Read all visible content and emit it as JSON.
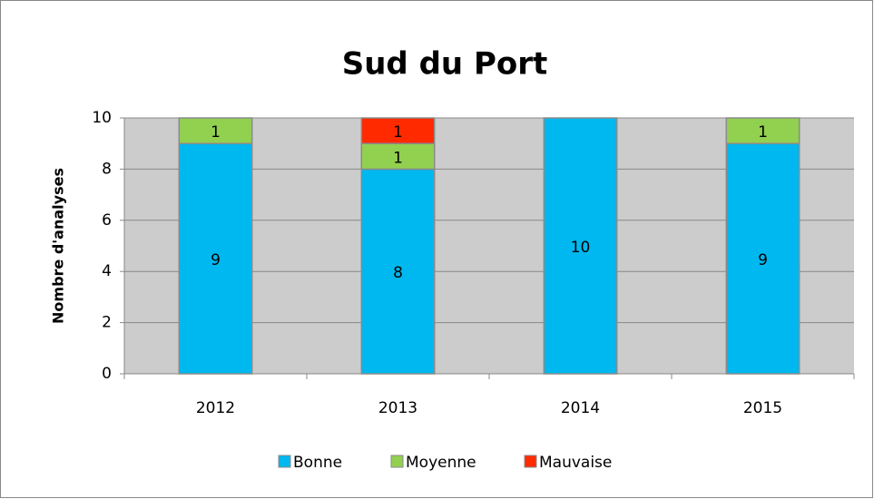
{
  "chart_data": {
    "type": "stacked_bar",
    "title": "Sud du Port",
    "y_label": "Nombre d'analyses",
    "categories": [
      "2012",
      "2013",
      "2014",
      "2015"
    ],
    "series": [
      {
        "name": "Bonne",
        "color": "#00b8f0",
        "values": [
          9,
          8,
          10,
          9
        ]
      },
      {
        "name": "Moyenne",
        "color": "#92d050",
        "values": [
          1,
          1,
          null,
          1
        ]
      },
      {
        "name": "Mauvaise",
        "color": "#ff2a00",
        "values": [
          null,
          1,
          null,
          null
        ]
      }
    ],
    "ylim": [
      0,
      10
    ],
    "yticks": [
      0,
      2,
      4,
      6,
      8,
      10
    ],
    "grid": true,
    "legend": "bottom"
  }
}
